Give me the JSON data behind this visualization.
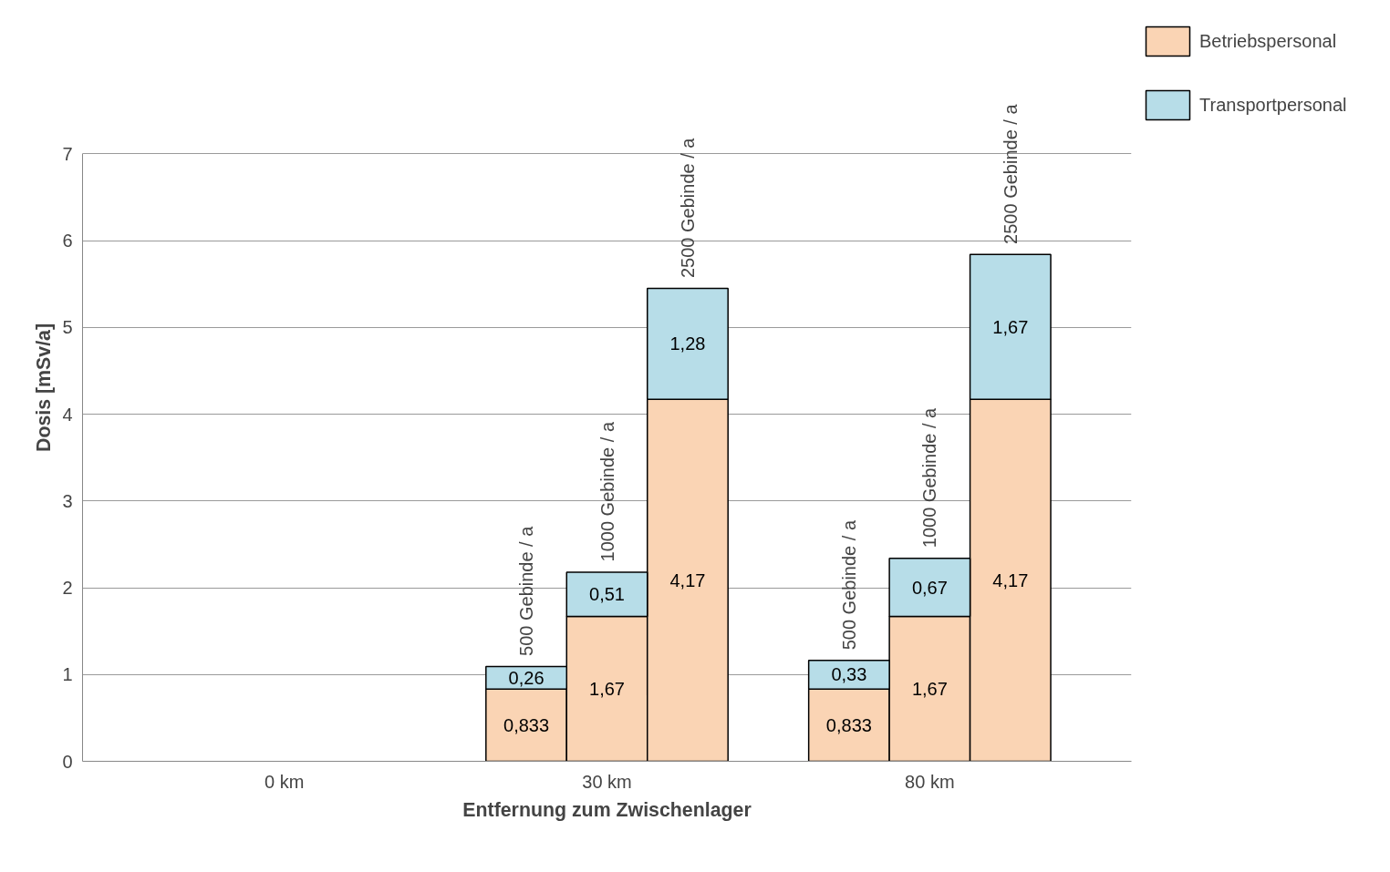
{
  "chart_data": {
    "type": "bar",
    "stacked": true,
    "xlabel": "Entfernung zum Zwischenlager",
    "ylabel": "Dosis [mSv/a]",
    "categories": [
      null,
      "0 km",
      null,
      null,
      "30 km",
      null,
      null,
      "80 km",
      null
    ],
    "series": [
      {
        "name": "Betriebspersonal",
        "color": "#fad4b4",
        "values": [
          null,
          null,
          null,
          0.833,
          1.67,
          4.17,
          0.833,
          1.67,
          4.17
        ],
        "value_labels": [
          null,
          null,
          null,
          "0,833",
          "1,67",
          "4,17",
          "0,833",
          "1,67",
          "4,17"
        ]
      },
      {
        "name": "Transportpersonal",
        "color": "#b7dde8",
        "values": [
          null,
          null,
          null,
          0.26,
          0.51,
          1.28,
          0.33,
          0.67,
          1.67
        ],
        "value_labels": [
          null,
          null,
          null,
          "0,26",
          "0,51",
          "1,28",
          "0,33",
          "0,67",
          "1,67"
        ]
      }
    ],
    "ylim": [
      0,
      7
    ],
    "yticks": [
      0,
      1,
      2,
      3,
      4,
      5,
      6,
      7
    ],
    "grid": "y",
    "legend": "right",
    "annotations": [
      "500 Gebinde / a",
      "1000 Gebinde / a",
      "2500 Gebinde / a",
      "500 Gebinde / a",
      "1000 Gebinde / a",
      "2500 Gebinde / a"
    ]
  }
}
